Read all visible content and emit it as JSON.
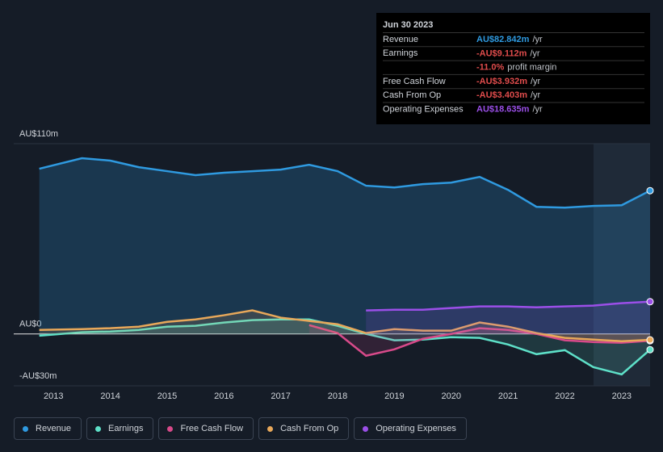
{
  "chart_data": {
    "type": "line",
    "x": [
      2012.75,
      2013.5,
      2014.0,
      2014.5,
      2015.0,
      2015.5,
      2016.0,
      2016.5,
      2017.0,
      2017.5,
      2018.0,
      2018.5,
      2019.0,
      2019.5,
      2020.0,
      2020.5,
      2021.0,
      2021.5,
      2022.0,
      2022.5,
      2023.0,
      2023.5
    ],
    "xlim": [
      2012.3,
      2023.5
    ],
    "xticks": [
      2013,
      2014,
      2015,
      2016,
      2017,
      2018,
      2019,
      2020,
      2021,
      2022,
      2023
    ],
    "ylim": [
      -30,
      110
    ],
    "yticks": [
      {
        "value": -30,
        "label": "-AU$30m"
      },
      {
        "value": 0,
        "label": "AU$0"
      },
      {
        "value": 110,
        "label": "AU$110m"
      }
    ],
    "grid": true,
    "series": [
      {
        "name": "Revenue",
        "color": "#2f9ae0",
        "values": [
          95.5,
          101.6,
          100.2,
          96.4,
          94.1,
          91.8,
          93.2,
          94.1,
          95.0,
          97.8,
          94.1,
          85.7,
          84.7,
          86.6,
          87.5,
          90.8,
          83.3,
          73.5,
          73.0,
          74.0,
          74.4,
          82.842
        ]
      },
      {
        "name": "Earnings",
        "color": "#5ee0c8",
        "values": [
          -1,
          1,
          1.4,
          2.3,
          4.2,
          4.7,
          6.6,
          8,
          8.4,
          8.4,
          4.7,
          0,
          -3.7,
          -3.3,
          -1.9,
          -2.3,
          -6.1,
          -11.7,
          -9.4,
          -19.2,
          -23.4,
          -9.112
        ]
      },
      {
        "name": "Free Cash Flow",
        "color": "#d84a8a",
        "values": [
          null,
          null,
          null,
          null,
          null,
          null,
          null,
          null,
          null,
          5.1,
          0.5,
          -12.6,
          -8.9,
          -2.8,
          0,
          3.3,
          2.3,
          0,
          -3.7,
          -4.7,
          -5.1,
          -3.932
        ]
      },
      {
        "name": "Cash From Op",
        "color": "#e8a85a",
        "values": [
          2.3,
          2.8,
          3.3,
          4.2,
          7,
          8.4,
          10.8,
          13.6,
          9.4,
          7.5,
          5.6,
          0.5,
          2.8,
          1.9,
          1.9,
          6.6,
          4.2,
          0.5,
          -2.3,
          -3.3,
          -4.2,
          -3.403
        ]
      },
      {
        "name": "Operating Expenses",
        "color": "#9b4fe8",
        "values": [
          null,
          null,
          null,
          null,
          null,
          null,
          null,
          null,
          null,
          null,
          null,
          13.6,
          14.0,
          14.0,
          15.0,
          15.9,
          15.9,
          15.4,
          15.9,
          16.4,
          17.8,
          18.635
        ]
      }
    ]
  },
  "tooltip": {
    "date": "Jun 30 2023",
    "rows": [
      {
        "label": "Revenue",
        "value": "AU$82.842m",
        "unit": "/yr",
        "color": "#2f9ae0"
      },
      {
        "label": "Earnings",
        "value": "-AU$9.112m",
        "unit": "/yr",
        "color": "#e04c4c"
      },
      {
        "label": null,
        "value": "-11.0%",
        "unit": "profit margin",
        "color": "#e04c4c"
      },
      {
        "label": "Free Cash Flow",
        "value": "-AU$3.932m",
        "unit": "/yr",
        "color": "#e04c4c"
      },
      {
        "label": "Cash From Op",
        "value": "-AU$3.403m",
        "unit": "/yr",
        "color": "#e04c4c"
      },
      {
        "label": "Operating Expenses",
        "value": "AU$18.635m",
        "unit": "/yr",
        "color": "#9b4fe8"
      }
    ]
  }
}
